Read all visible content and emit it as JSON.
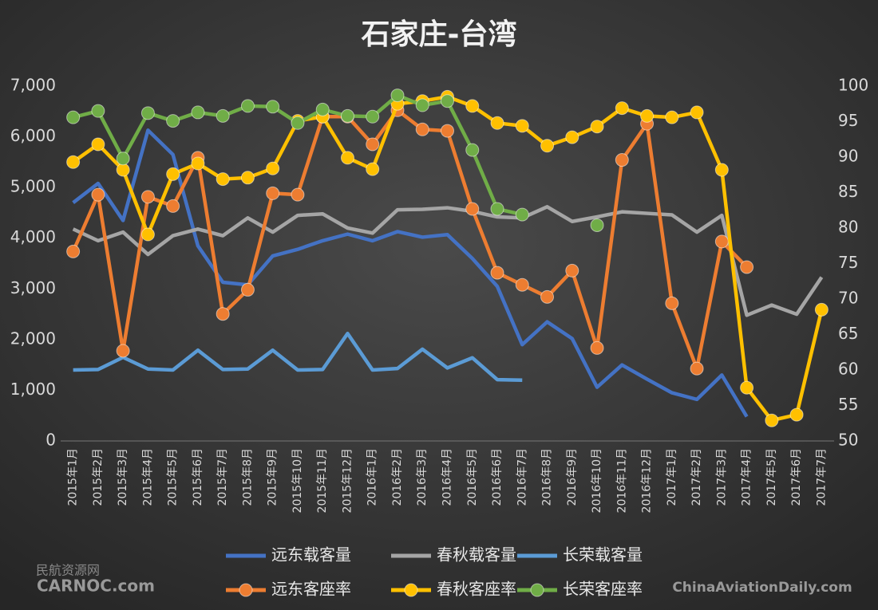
{
  "chart_data": {
    "type": "line",
    "title": "石家庄-台湾",
    "categories": [
      "2015年1月",
      "2015年2月",
      "2015年3月",
      "2015年4月",
      "2015年5月",
      "2015年6月",
      "2015年7月",
      "2015年8月",
      "2015年9月",
      "2015年10月",
      "2015年11月",
      "2015年12月",
      "2016年1月",
      "2016年2月",
      "2016年3月",
      "2016年4月",
      "2016年5月",
      "2016年6月",
      "2016年7月",
      "2016年8月",
      "2016年9月",
      "2016年10月",
      "2016年11月",
      "2016年12月",
      "2017年1月",
      "2017年2月",
      "2017年3月",
      "2017年4月",
      "2017年5月",
      "2017年6月",
      "2017年7月"
    ],
    "series": [
      {
        "name": "远东载客量",
        "color": "#4472c4",
        "values": [
          4700,
          5080,
          4350,
          6130,
          5650,
          3850,
          3130,
          3080,
          3650,
          3780,
          3950,
          4080,
          3950,
          4130,
          4020,
          4070,
          3600,
          3050,
          1900,
          2350,
          2020,
          1060,
          1500,
          1220,
          950,
          820,
          1300,
          480,
          null,
          null,
          null
        ]
      },
      {
        "name": "春秋载客量",
        "color": "#a5a5a5",
        "values": [
          4180,
          3950,
          4120,
          3680,
          4050,
          4180,
          4050,
          4400,
          4120,
          4450,
          4480,
          4200,
          4100,
          4560,
          4570,
          4600,
          4530,
          4420,
          4400,
          4620,
          4330,
          4420,
          4520,
          4490,
          4460,
          4120,
          4450,
          2480,
          2680,
          2500,
          3230
        ]
      },
      {
        "name": "长荣载客量",
        "color": "#5b9bd5",
        "values": [
          1400,
          1410,
          1650,
          1420,
          1400,
          1790,
          1410,
          1420,
          1790,
          1400,
          1410,
          2120,
          1400,
          1430,
          1810,
          1440,
          1640,
          1210,
          1200,
          null,
          null,
          null,
          null,
          null,
          null,
          null,
          null,
          null,
          null,
          null,
          null
        ]
      },
      {
        "name": "远东客座率",
        "color": "#ed7d31",
        "axis": "y2",
        "marker": true,
        "values": [
          76.7,
          84.7,
          62.7,
          84.4,
          83.1,
          89.9,
          67.9,
          71.3,
          84.9,
          84.7,
          95.7,
          95.7,
          91.8,
          96.6,
          93.9,
          93.7,
          82.7,
          73.7,
          72.0,
          70.3,
          74.0,
          63.1,
          89.6,
          94.7,
          69.4,
          60.2,
          78.1,
          74.5,
          null,
          null,
          null
        ]
      },
      {
        "name": "春秋客座率",
        "color": "#ffc000",
        "axis": "y2",
        "marker": true,
        "values": [
          89.3,
          91.8,
          88.2,
          79.1,
          87.6,
          89.1,
          86.9,
          87.1,
          88.4,
          95.1,
          95.7,
          89.9,
          88.3,
          97.5,
          97.9,
          98.5,
          97.2,
          94.8,
          94.4,
          91.6,
          92.8,
          94.3,
          96.9,
          95.8,
          95.6,
          96.3,
          88.2,
          57.5,
          52.9,
          53.7,
          68.5
        ]
      },
      {
        "name": "长荣客座率",
        "color": "#70ad47",
        "axis": "y2",
        "marker": true,
        "values": [
          95.6,
          96.5,
          89.8,
          96.2,
          95.1,
          96.3,
          95.8,
          97.2,
          97.1,
          94.8,
          96.7,
          95.8,
          95.7,
          98.7,
          97.3,
          97.9,
          91.0,
          82.7,
          81.9,
          null,
          null,
          80.4,
          null,
          null,
          null,
          null,
          null,
          null,
          null,
          null,
          null
        ]
      }
    ],
    "ylim": [
      0,
      7000
    ],
    "yticks": [
      0,
      {
        "value": 1000,
        "label": "1,000"
      },
      {
        "value": 2000,
        "label": "2,000"
      },
      {
        "value": 3000,
        "label": "3,000"
      },
      {
        "value": 4000,
        "label": "4,000"
      },
      {
        "value": 5000,
        "label": "5,000"
      },
      {
        "value": 6000,
        "label": "6,000"
      },
      {
        "value": 7000,
        "label": "7,000"
      }
    ],
    "y2lim": [
      50,
      100
    ],
    "y2ticks": [
      50,
      55,
      60,
      65,
      70,
      75,
      80,
      85,
      90,
      95,
      100
    ],
    "grid": false
  },
  "watermark": {
    "left_cn": "民航资源网",
    "left_en": "CARNOC.com",
    "right": "ChinaAviationDaily.com"
  }
}
